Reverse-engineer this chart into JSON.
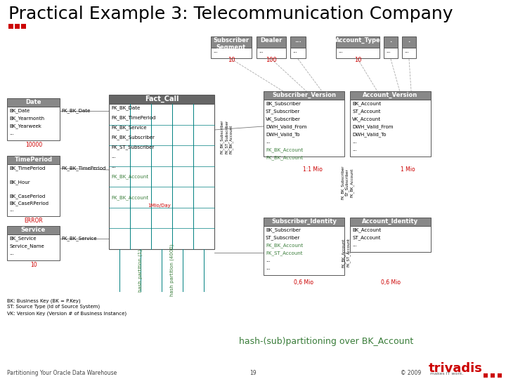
{
  "title": "Practical Example 3: Telecommunication Company",
  "title_fontsize": 18,
  "subtitle_dots_color": "#cc0000",
  "bg_color": "#ffffff",
  "footer_left": "Partitioning Your Oracle Data Warehouse",
  "footer_center": "19",
  "footer_right": "© 2009",
  "footer_brand": "trivadis",
  "footer_tagline": "makes IT work.",
  "hash_label": "hash-(sub)partitioning over BK_Account",
  "hash_label_color": "#3a7d3a",
  "header_color": "#888888",
  "fk_color": "#3a7d3a",
  "red_text_color": "#cc0000",
  "teal_color": "#008080",
  "black": "#000000",
  "white": "#ffffff",
  "gray_border": "#555555"
}
